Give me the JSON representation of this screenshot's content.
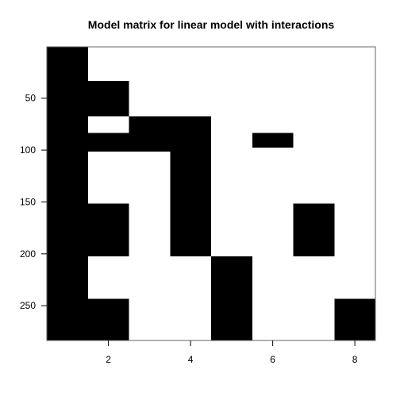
{
  "chart_data": {
    "type": "heatmap",
    "title": "Model matrix for linear model with interactions",
    "xlabel": "",
    "ylabel": "",
    "xlim": [
      0.5,
      8.5
    ],
    "ylim": [
      283.5,
      0.5
    ],
    "y_reversed": true,
    "x_ticks": [
      2,
      4,
      6,
      8
    ],
    "y_ticks": [
      50,
      100,
      150,
      200,
      250
    ],
    "colors": {
      "nonzero": "#000000",
      "zero": "#ffffff"
    },
    "columns": 8,
    "rows": 283,
    "nonzero_cells": [
      {
        "column": 1,
        "row_from": 1,
        "row_to": 283
      },
      {
        "column": 2,
        "row_from": 34,
        "row_to": 67
      },
      {
        "column": 2,
        "row_from": 84,
        "row_to": 101
      },
      {
        "column": 2,
        "row_from": 152,
        "row_to": 202
      },
      {
        "column": 2,
        "row_from": 244,
        "row_to": 283
      },
      {
        "column": 3,
        "row_from": 68,
        "row_to": 101
      },
      {
        "column": 4,
        "row_from": 68,
        "row_to": 101
      },
      {
        "column": 4,
        "row_from": 102,
        "row_to": 202
      },
      {
        "column": 5,
        "row_from": 203,
        "row_to": 283
      },
      {
        "column": 6,
        "row_from": 84,
        "row_to": 97
      },
      {
        "column": 7,
        "row_from": 152,
        "row_to": 202
      },
      {
        "column": 8,
        "row_from": 244,
        "row_to": 283
      }
    ]
  }
}
